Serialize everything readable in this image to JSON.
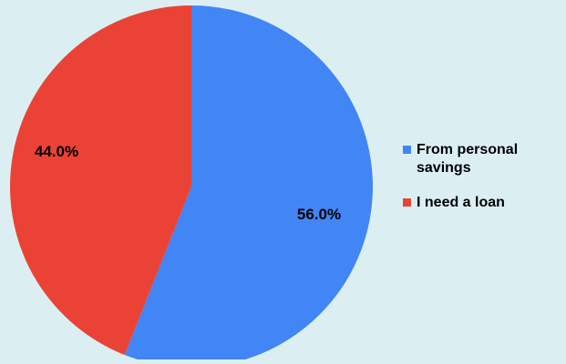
{
  "chart_data": {
    "type": "pie",
    "title": "",
    "legend_position": "right",
    "slices": [
      {
        "name": "From personal savings",
        "legend_label": "From personal savings",
        "value": 56.0,
        "label": "56.0%",
        "color": "#4285f4"
      },
      {
        "name": "I need a loan",
        "legend_label": "I need a loan",
        "value": 44.0,
        "label": "44.0%",
        "color": "#ea4335"
      }
    ]
  },
  "colors": {
    "background": "#dbeff3"
  }
}
